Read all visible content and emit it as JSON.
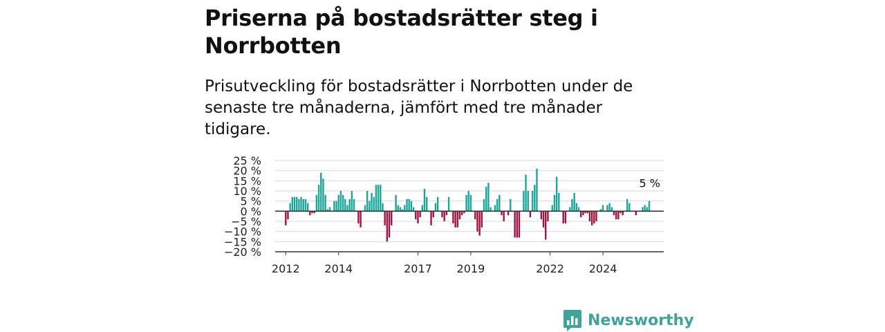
{
  "header": {
    "title": "Priserna på bostadsrätter steg i Norrbotten",
    "subtitle": "Prisutveckling för bostadsrätter i Norrbotten under de senaste tre månaderna, jämfört med tre månader tidigare."
  },
  "brand": {
    "name": "Newsworthy",
    "color": "#3fa399",
    "icon": "newsworthy-logo-icon"
  },
  "chart_data": {
    "type": "bar",
    "title": "",
    "xlabel": "",
    "ylabel": "",
    "ylim": [
      -20,
      25
    ],
    "yticks": [
      25,
      20,
      15,
      10,
      5,
      0,
      -5,
      -10,
      -15,
      -20
    ],
    "ytick_labels": [
      "25 %",
      "20 %",
      "15 %",
      "10 %",
      "5 %",
      "0 %",
      "−5 %",
      "−10 %",
      "−15 %",
      "−20 %"
    ],
    "xticks": [
      2012,
      2014,
      2017,
      2019,
      2022,
      2024
    ],
    "xtick_labels": [
      "2012",
      "2014",
      "2017",
      "2019",
      "2022",
      "2024"
    ],
    "x_start": 2012.0,
    "x_step": 0.08333,
    "positive_color": "#1aa59a",
    "negative_color": "#a3123e",
    "grid": true,
    "annotation": {
      "text": "5 %",
      "value": 5
    },
    "values": [
      -7,
      -4,
      4,
      7,
      7,
      7,
      6,
      7,
      6,
      6,
      4,
      -2,
      -1,
      -1,
      8,
      13,
      19,
      16,
      8,
      1,
      2,
      0,
      5,
      5,
      8,
      10,
      8,
      6,
      3,
      6,
      10,
      6,
      0,
      -6,
      -8,
      0,
      3,
      10,
      5,
      9,
      7,
      13,
      13,
      13,
      4,
      -7,
      -15,
      -13,
      -7,
      0,
      8,
      3,
      2,
      1,
      3,
      6,
      6,
      5,
      2,
      -4,
      -6,
      -3,
      3,
      11,
      7,
      0,
      -7,
      -3,
      4,
      7,
      0,
      -3,
      -5,
      -2,
      7,
      0,
      -6,
      -8,
      -8,
      -4,
      -2,
      -1,
      8,
      10,
      8,
      0,
      -4,
      -10,
      -12,
      -8,
      6,
      12,
      14,
      2,
      0,
      3,
      6,
      8,
      -2,
      -5,
      0,
      -2,
      6,
      0,
      -13,
      -13,
      -13,
      0,
      10,
      18,
      10,
      -3,
      10,
      13,
      21,
      0,
      -4,
      -8,
      -14,
      -5,
      0,
      3,
      8,
      17,
      9,
      0,
      -6,
      -6,
      0,
      2,
      6,
      9,
      4,
      2,
      -3,
      -2,
      -1,
      -1,
      -5,
      -7,
      -6,
      -5,
      0,
      1,
      3,
      0,
      3,
      4,
      2,
      -2,
      -4,
      -4,
      -1,
      -2,
      0,
      6,
      4,
      0,
      0,
      -2,
      0,
      0,
      2,
      3,
      2,
      5
    ]
  }
}
